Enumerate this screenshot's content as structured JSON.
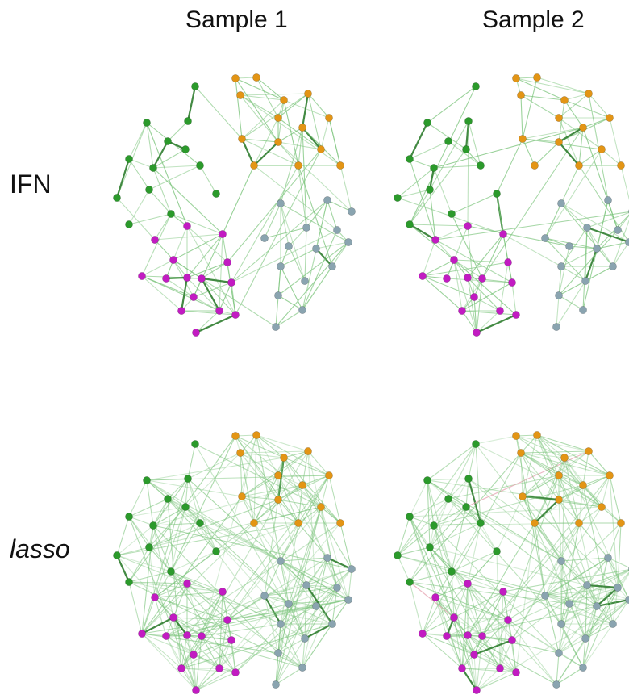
{
  "columns": [
    "Sample 1",
    "Sample 2"
  ],
  "rows": [
    "IFN",
    "lasso"
  ],
  "colors": {
    "green": "#2b9a2b",
    "orange": "#e39515",
    "magenta": "#c21bc2",
    "gray": "#8aa4b0",
    "edge": "#7bc47b",
    "edge_strong": "#2f7d2f",
    "edge_negative": "#e7a6b4"
  },
  "node_groups": [
    "green",
    "orange",
    "gray",
    "magenta"
  ]
}
